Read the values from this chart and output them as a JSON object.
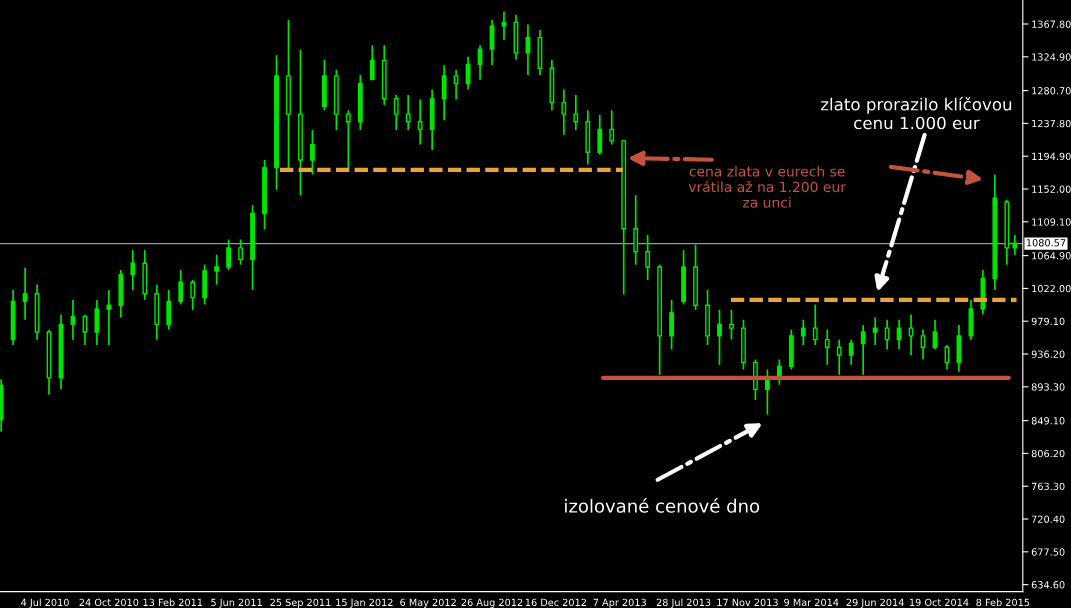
{
  "chart_data": {
    "type": "candlestick",
    "color": "#00e600",
    "x": [
      "2010-04-18",
      "2010-05-09",
      "2010-05-30",
      "2010-06-20",
      "2010-07-11",
      "2010-08-01",
      "2010-08-22",
      "2010-09-12",
      "2010-10-03",
      "2010-10-24",
      "2010-11-14",
      "2010-12-05",
      "2010-12-26",
      "2011-01-16",
      "2011-02-06",
      "2011-02-27",
      "2011-03-20",
      "2011-04-10",
      "2011-05-01",
      "2011-05-22",
      "2011-06-12",
      "2011-07-03",
      "2011-07-24",
      "2011-08-14",
      "2011-09-04",
      "2011-09-25",
      "2011-10-16",
      "2011-11-06",
      "2011-11-27",
      "2011-12-18",
      "2012-01-08",
      "2012-01-29",
      "2012-02-19",
      "2012-03-11",
      "2012-04-01",
      "2012-04-22",
      "2012-05-13",
      "2012-06-03",
      "2012-06-24",
      "2012-07-15",
      "2012-08-05",
      "2012-08-26",
      "2012-09-16",
      "2012-10-07",
      "2012-10-28",
      "2012-11-18",
      "2012-12-09",
      "2012-12-30",
      "2013-01-20",
      "2013-02-10",
      "2013-03-03",
      "2013-03-24",
      "2013-04-14",
      "2013-05-05",
      "2013-05-26",
      "2013-06-16",
      "2013-07-07",
      "2013-07-28",
      "2013-08-18",
      "2013-09-08",
      "2013-09-29",
      "2013-10-20",
      "2013-11-10",
      "2013-12-01",
      "2013-12-22",
      "2014-01-12",
      "2014-02-02",
      "2014-02-23",
      "2014-03-16",
      "2014-04-06",
      "2014-04-27",
      "2014-05-18",
      "2014-06-08",
      "2014-06-29",
      "2014-07-20",
      "2014-08-10",
      "2014-08-31",
      "2014-09-21",
      "2014-10-12",
      "2014-11-02",
      "2014-11-23",
      "2014-12-14",
      "2015-01-04",
      "2015-01-25",
      "2015-02-15",
      "2015-03-01"
    ],
    "ohlc": [
      [
        850,
        903,
        835,
        895
      ],
      [
        955,
        1020,
        948,
        1005
      ],
      [
        1005,
        1049,
        981,
        1015
      ],
      [
        1015,
        1027,
        955,
        965
      ],
      [
        965,
        968,
        883,
        905
      ],
      [
        905,
        988,
        890,
        975
      ],
      [
        975,
        1007,
        955,
        985
      ],
      [
        985,
        988,
        948,
        965
      ],
      [
        965,
        1007,
        948,
        995
      ],
      [
        995,
        1020,
        948,
        1000
      ],
      [
        1000,
        1046,
        984,
        1040
      ],
      [
        1040,
        1072,
        1020,
        1055
      ],
      [
        1055,
        1072,
        1007,
        1015
      ],
      [
        1015,
        1027,
        955,
        975
      ],
      [
        975,
        1020,
        968,
        1005
      ],
      [
        1005,
        1046,
        1001,
        1030
      ],
      [
        1030,
        1033,
        994,
        1010
      ],
      [
        1010,
        1053,
        1001,
        1045
      ],
      [
        1045,
        1066,
        1027,
        1050
      ],
      [
        1050,
        1086,
        1046,
        1075
      ],
      [
        1075,
        1086,
        1053,
        1060
      ],
      [
        1060,
        1131,
        1020,
        1120
      ],
      [
        1120,
        1190,
        1099,
        1180
      ],
      [
        1180,
        1327,
        1151,
        1300
      ],
      [
        1300,
        1373,
        1177,
        1250
      ],
      [
        1250,
        1334,
        1144,
        1190
      ],
      [
        1190,
        1229,
        1171,
        1210
      ],
      [
        1260,
        1321,
        1255,
        1300
      ],
      [
        1300,
        1308,
        1229,
        1250
      ],
      [
        1250,
        1255,
        1177,
        1240
      ],
      [
        1240,
        1301,
        1229,
        1290
      ],
      [
        1295,
        1340,
        1295,
        1320
      ],
      [
        1320,
        1340,
        1262,
        1270
      ],
      [
        1270,
        1275,
        1229,
        1250
      ],
      [
        1250,
        1275,
        1229,
        1240
      ],
      [
        1240,
        1269,
        1210,
        1230
      ],
      [
        1230,
        1282,
        1203,
        1270
      ],
      [
        1270,
        1314,
        1242,
        1300
      ],
      [
        1300,
        1308,
        1269,
        1290
      ],
      [
        1290,
        1325,
        1282,
        1315
      ],
      [
        1315,
        1340,
        1295,
        1335
      ],
      [
        1335,
        1373,
        1314,
        1365
      ],
      [
        1365,
        1384,
        1347,
        1370
      ],
      [
        1370,
        1380,
        1321,
        1330
      ],
      [
        1330,
        1367,
        1301,
        1350
      ],
      [
        1350,
        1360,
        1301,
        1310
      ],
      [
        1310,
        1321,
        1255,
        1265
      ],
      [
        1265,
        1282,
        1223,
        1250
      ],
      [
        1250,
        1275,
        1229,
        1240
      ],
      [
        1240,
        1255,
        1184,
        1200
      ],
      [
        1200,
        1249,
        1197,
        1230
      ],
      [
        1230,
        1255,
        1210,
        1215
      ],
      [
        1215,
        1216,
        1014,
        1100
      ],
      [
        1100,
        1144,
        1053,
        1070
      ],
      [
        1070,
        1092,
        1033,
        1050
      ],
      [
        1050,
        1053,
        909,
        960
      ],
      [
        960,
        1007,
        942,
        990
      ],
      [
        1005,
        1072,
        1001,
        1050
      ],
      [
        1050,
        1079,
        994,
        1000
      ],
      [
        1000,
        1020,
        948,
        960
      ],
      [
        960,
        994,
        922,
        975
      ],
      [
        975,
        994,
        955,
        970
      ],
      [
        970,
        981,
        916,
        925
      ],
      [
        925,
        929,
        876,
        890
      ],
      [
        890,
        916,
        857,
        905
      ],
      [
        905,
        929,
        896,
        920
      ],
      [
        920,
        968,
        916,
        960
      ],
      [
        960,
        981,
        948,
        970
      ],
      [
        970,
        1001,
        948,
        955
      ],
      [
        955,
        968,
        922,
        945
      ],
      [
        945,
        955,
        909,
        935
      ],
      [
        935,
        955,
        922,
        950
      ],
      [
        950,
        974,
        909,
        965
      ],
      [
        965,
        984,
        948,
        970
      ],
      [
        970,
        981,
        942,
        955
      ],
      [
        955,
        981,
        942,
        970
      ],
      [
        970,
        988,
        935,
        960
      ],
      [
        960,
        968,
        929,
        945
      ],
      [
        945,
        981,
        942,
        965
      ],
      [
        945,
        948,
        916,
        925
      ],
      [
        925,
        974,
        913,
        960
      ],
      [
        960,
        1007,
        955,
        995
      ],
      [
        995,
        1046,
        988,
        1035
      ],
      [
        1035,
        1171,
        1020,
        1140
      ],
      [
        1135,
        1138,
        1053,
        1075
      ],
      [
        1075,
        1092,
        1066,
        1081
      ]
    ],
    "series": [
      {
        "type": "line",
        "color": "#e8a33c",
        "line_style": "dashed",
        "x": [
          "2011-08-20",
          "2013-04-13"
        ],
        "values": [
          1177,
          1177
        ]
      },
      {
        "type": "line",
        "color": "#e8a33c",
        "line_style": "dashed",
        "x": [
          "2013-10-19",
          "2015-03-04"
        ],
        "values": [
          1007,
          1007
        ]
      },
      {
        "type": "line",
        "color": "#c4523c",
        "line_style": "solid",
        "x": [
          "2013-03-09",
          "2015-02-18"
        ],
        "values": [
          905,
          905
        ]
      }
    ],
    "ref_lines": [
      {
        "axis": "y",
        "value": 1080.57,
        "label": "1080.57",
        "color": "#8a9bb0"
      }
    ],
    "annotations": [
      "zlato prorazilo klíčovou\ncenu 1.000 eur",
      "cena zlata v eurech se\nvrátila až na 1.200 eur\nza unci",
      "izolované cenové dno"
    ],
    "xlim": [
      "2010-04-16",
      "2015-03-15"
    ],
    "xticks": [
      {
        "value": "2010-07-04",
        "label": "4 Jul 2010"
      },
      {
        "value": "2010-10-24",
        "label": "24 Oct 2010"
      },
      {
        "value": "2011-02-13",
        "label": "13 Feb 2011"
      },
      {
        "value": "2011-06-05",
        "label": "5 Jun 2011"
      },
      {
        "value": "2011-09-25",
        "label": "25 Sep 2011"
      },
      {
        "value": "2012-01-15",
        "label": "15 Jan 2012"
      },
      {
        "value": "2012-05-06",
        "label": "6 May 2012"
      },
      {
        "value": "2012-08-26",
        "label": "26 Aug 2012"
      },
      {
        "value": "2012-12-16",
        "label": "16 Dec 2012"
      },
      {
        "value": "2013-04-07",
        "label": "7 Apr 2013"
      },
      {
        "value": "2013-07-28",
        "label": "28 Jul 2013"
      },
      {
        "value": "2013-11-17",
        "label": "17 Nov 2013"
      },
      {
        "value": "2014-03-09",
        "label": "9 Mar 2014"
      },
      {
        "value": "2014-06-29",
        "label": "29 Jun 2014"
      },
      {
        "value": "2014-10-19",
        "label": "19 Oct 2014"
      },
      {
        "value": "2015-02-08",
        "label": "8 Feb 2015"
      }
    ],
    "ylim": [
      625.5,
      1399.2
    ],
    "yticks": [
      {
        "value": 634.6,
        "label": "634.60"
      },
      {
        "value": 677.5,
        "label": "677.50"
      },
      {
        "value": 720.4,
        "label": "720.40"
      },
      {
        "value": 763.3,
        "label": "763.30"
      },
      {
        "value": 806.2,
        "label": "806.20"
      },
      {
        "value": 849.1,
        "label": "849.10"
      },
      {
        "value": 893.3,
        "label": "893.30"
      },
      {
        "value": 936.2,
        "label": "936.20"
      },
      {
        "value": 979.1,
        "label": "979.10"
      },
      {
        "value": 1022,
        "label": "1022.00"
      },
      {
        "value": 1064.9,
        "label": "1064.90"
      },
      {
        "value": 1109.1,
        "label": "1109.10"
      },
      {
        "value": 1152,
        "label": "1152.00"
      },
      {
        "value": 1194.9,
        "label": "1194.90"
      },
      {
        "value": 1237.8,
        "label": "1237.80"
      },
      {
        "value": 1280.7,
        "label": "1280.70"
      },
      {
        "value": 1324.9,
        "label": "1324.90"
      },
      {
        "value": 1367.8,
        "label": "1367.80"
      }
    ],
    "grid": false,
    "legend": false
  }
}
